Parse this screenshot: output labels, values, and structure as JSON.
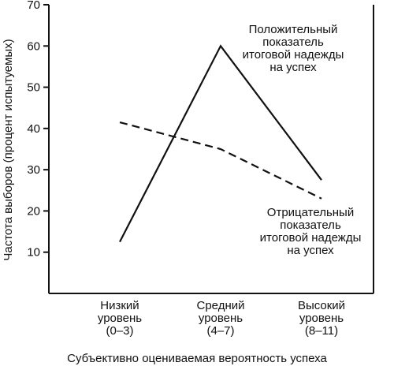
{
  "chart_data": {
    "type": "line",
    "categories": [
      [
        "Низкий",
        "уровень",
        "(0–3)"
      ],
      [
        "Средний",
        "уровень",
        "(4–7)"
      ],
      [
        "Высокий",
        "уровень",
        "(8–11)"
      ]
    ],
    "series": [
      {
        "name": "Положительный показатель итоговой надежды на успех",
        "style": "solid",
        "values": [
          12.5,
          60,
          27.5
        ]
      },
      {
        "name": "Отрицательный показатель итоговой надежды на успех",
        "style": "dashed",
        "values": [
          41.5,
          35,
          23
        ]
      }
    ],
    "annotations": [
      {
        "series": 0,
        "lines": [
          "Положительный",
          "показатель",
          "итоговой надежды",
          "на успех"
        ]
      },
      {
        "series": 1,
        "lines": [
          "Отрицательный",
          "показатель",
          "итоговой надежды",
          "на успех"
        ]
      }
    ],
    "xlabel": "Субъективно оцениваемая вероятность успеха",
    "ylabel": "Частота выборов (процент испытуемых)",
    "ylim": [
      0,
      70
    ],
    "yticks": [
      10,
      20,
      30,
      40,
      50,
      60,
      70
    ],
    "grid": false,
    "legend": "none"
  }
}
